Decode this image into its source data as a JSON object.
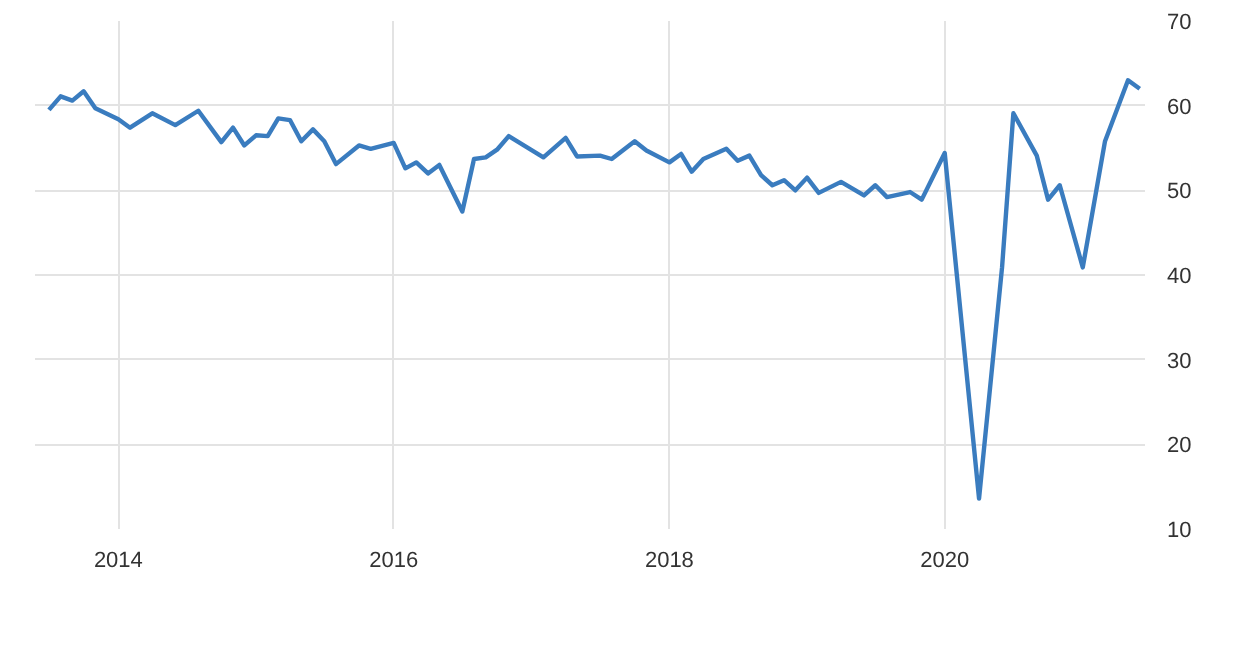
{
  "chart_data": {
    "type": "line",
    "x": [
      "2013-07",
      "2013-08",
      "2013-09",
      "2013-10",
      "2013-11",
      "2014-01",
      "2014-02",
      "2014-04",
      "2014-06",
      "2014-08",
      "2014-10",
      "2014-11",
      "2014-12",
      "2015-01",
      "2015-02",
      "2015-03",
      "2015-04",
      "2015-05",
      "2015-06",
      "2015-07",
      "2015-08",
      "2015-10",
      "2015-11",
      "2016-01",
      "2016-02",
      "2016-03",
      "2016-04",
      "2016-05",
      "2016-07",
      "2016-08",
      "2016-09",
      "2016-10",
      "2016-11",
      "2017-02",
      "2017-04",
      "2017-05",
      "2017-07",
      "2017-08",
      "2017-10",
      "2017-11",
      "2018-01",
      "2018-02",
      "2018-03",
      "2018-04",
      "2018-06",
      "2018-07",
      "2018-08",
      "2018-09",
      "2018-10",
      "2018-11",
      "2018-12",
      "2019-01",
      "2019-02",
      "2019-04",
      "2019-06",
      "2019-07",
      "2019-08",
      "2019-10",
      "2019-11",
      "2020-01",
      "2020-04",
      "2020-06",
      "2020-07",
      "2020-09",
      "2020-10",
      "2020-11",
      "2021-01",
      "2021-03",
      "2021-05",
      "2021-06"
    ],
    "series": [
      {
        "color": "#3a7cbf",
        "values": [
          59.5,
          61.1,
          60.6,
          61.7,
          59.7,
          58.4,
          57.4,
          59.1,
          57.7,
          59.4,
          55.7,
          57.4,
          55.3,
          56.5,
          56.4,
          58.5,
          58.3,
          55.8,
          57.2,
          55.8,
          53.1,
          55.3,
          54.9,
          55.6,
          52.6,
          53.3,
          52.0,
          53.0,
          47.5,
          53.7,
          53.9,
          54.8,
          56.4,
          53.9,
          56.2,
          54.0,
          54.1,
          53.7,
          55.8,
          54.7,
          53.3,
          54.3,
          52.2,
          53.7,
          54.9,
          53.5,
          54.1,
          51.8,
          50.6,
          51.2,
          50.0,
          51.5,
          49.7,
          51.0,
          49.4,
          50.6,
          49.2,
          49.8,
          48.9,
          54.4,
          13.6,
          40.9,
          59.1,
          54.1,
          48.9,
          50.6,
          40.9,
          55.8,
          63.0,
          62.0
        ]
      }
    ],
    "xlim": [
      "2013-05-25",
      "2021-06-15"
    ],
    "xticks": [
      "2014",
      "2016",
      "2018",
      "2020"
    ],
    "ylim": [
      10,
      70
    ],
    "yticks": [
      10,
      20,
      30,
      40,
      50,
      60,
      70
    ],
    "grid": true,
    "marker": "none",
    "line_style": "solid"
  }
}
